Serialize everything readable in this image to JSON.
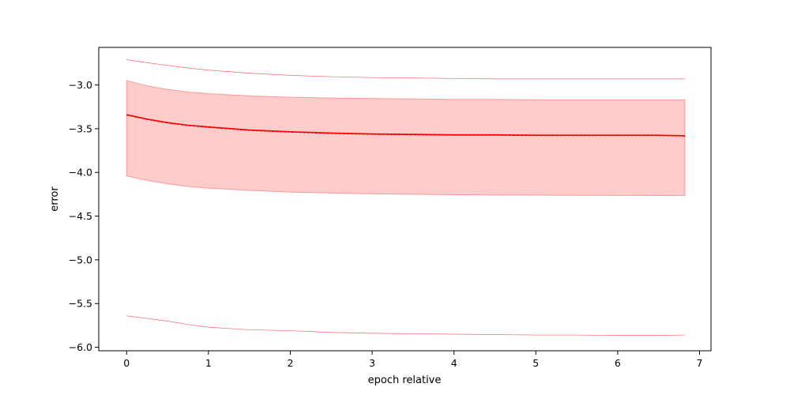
{
  "chart_data": {
    "type": "line",
    "title": "",
    "xlabel": "epoch relative",
    "ylabel": "error",
    "xlim": [
      -0.34,
      7.14
    ],
    "ylim": [
      -6.04,
      -2.57
    ],
    "xticks": [
      0,
      1,
      2,
      3,
      4,
      5,
      6,
      7
    ],
    "yticks": [
      -6.0,
      -5.5,
      -5.0,
      -4.5,
      -4.0,
      -3.5,
      -3.0
    ],
    "grid": false,
    "legend": "none",
    "colors": {
      "mean_line": "#ff0000",
      "median_line": "#8b0000",
      "band_fill": "#ffcccc",
      "band_edge": "#ff9999",
      "extreme_line": "#ff6666"
    },
    "x": [
      0,
      0.25,
      0.5,
      0.75,
      1,
      1.5,
      2,
      2.5,
      3,
      3.5,
      4,
      4.5,
      5,
      5.5,
      6,
      6.5,
      6.82
    ],
    "series": [
      {
        "role": "upper-extreme",
        "values": [
          -2.71,
          -2.745,
          -2.775,
          -2.805,
          -2.83,
          -2.865,
          -2.89,
          -2.905,
          -2.915,
          -2.92,
          -2.925,
          -2.93,
          -2.93,
          -2.93,
          -2.93,
          -2.93,
          -2.93
        ]
      },
      {
        "role": "upper-band",
        "values": [
          -2.95,
          -3.01,
          -3.05,
          -3.08,
          -3.1,
          -3.125,
          -3.14,
          -3.15,
          -3.155,
          -3.16,
          -3.165,
          -3.165,
          -3.17,
          -3.17,
          -3.17,
          -3.17,
          -3.17
        ]
      },
      {
        "role": "mean",
        "values": [
          -3.34,
          -3.39,
          -3.43,
          -3.46,
          -3.48,
          -3.515,
          -3.535,
          -3.55,
          -3.56,
          -3.565,
          -3.57,
          -3.57,
          -3.575,
          -3.575,
          -3.575,
          -3.575,
          -3.58
        ]
      },
      {
        "role": "median",
        "values": [
          -3.345,
          -3.395,
          -3.435,
          -3.465,
          -3.485,
          -3.52,
          -3.54,
          -3.555,
          -3.565,
          -3.57,
          -3.575,
          -3.575,
          -3.58,
          -3.58,
          -3.58,
          -3.58,
          -3.585
        ]
      },
      {
        "role": "lower-band",
        "values": [
          -4.04,
          -4.09,
          -4.13,
          -4.16,
          -4.18,
          -4.205,
          -4.225,
          -4.235,
          -4.245,
          -4.25,
          -4.255,
          -4.258,
          -4.26,
          -4.262,
          -4.263,
          -4.264,
          -4.265
        ]
      },
      {
        "role": "lower-extreme",
        "values": [
          -5.64,
          -5.67,
          -5.7,
          -5.74,
          -5.77,
          -5.8,
          -5.81,
          -5.83,
          -5.84,
          -5.845,
          -5.85,
          -5.855,
          -5.86,
          -5.86,
          -5.865,
          -5.865,
          -5.86
        ]
      }
    ]
  }
}
